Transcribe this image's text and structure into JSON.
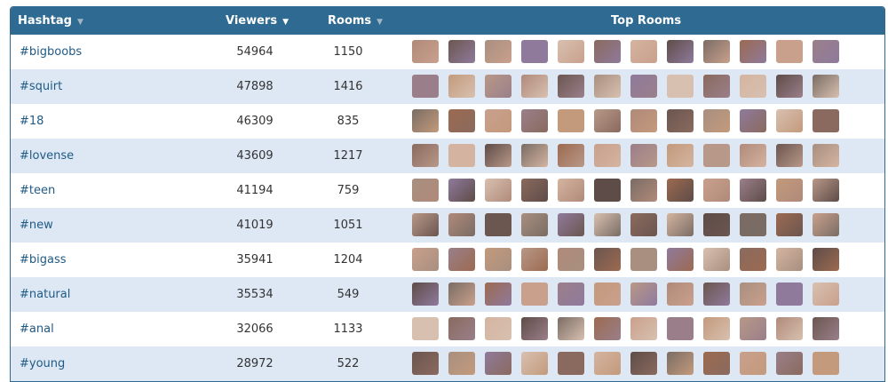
{
  "header": {
    "hashtag": "Hashtag",
    "viewers": "Viewers",
    "rooms": "Rooms",
    "top_rooms": "Top Rooms",
    "sort_icon": "triangle-down-icon",
    "active_sort": "viewers"
  },
  "colors": {
    "header_bg": "#2f6a92",
    "alt_row": "#dde8f4",
    "link": "#1f5a85"
  },
  "rows": [
    {
      "tag": "#bigboobs",
      "viewers": "54964",
      "rooms": "1150"
    },
    {
      "tag": "#squirt",
      "viewers": "47898",
      "rooms": "1416"
    },
    {
      "tag": "#18",
      "viewers": "46309",
      "rooms": "835"
    },
    {
      "tag": "#lovense",
      "viewers": "43609",
      "rooms": "1217"
    },
    {
      "tag": "#teen",
      "viewers": "41194",
      "rooms": "759"
    },
    {
      "tag": "#new",
      "viewers": "41019",
      "rooms": "1051"
    },
    {
      "tag": "#bigass",
      "viewers": "35941",
      "rooms": "1204"
    },
    {
      "tag": "#natural",
      "viewers": "35534",
      "rooms": "549"
    },
    {
      "tag": "#anal",
      "viewers": "32066",
      "rooms": "1133"
    },
    {
      "tag": "#young",
      "viewers": "28972",
      "rooms": "522"
    }
  ],
  "thumbs_per_row": 12
}
